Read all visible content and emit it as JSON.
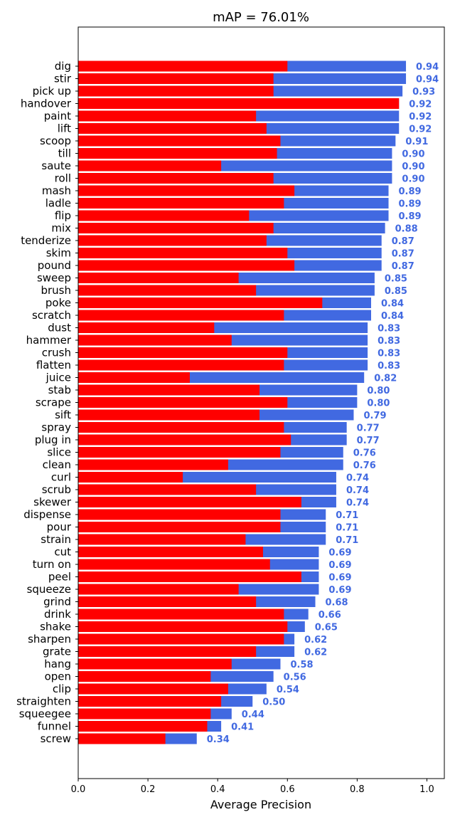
{
  "chart_data": {
    "type": "bar",
    "orientation": "horizontal",
    "title": "mAP = 76.01%",
    "xlabel": "Average Precision",
    "ylabel": "",
    "xlim": [
      0.0,
      1.05
    ],
    "xticks": [
      "0.0",
      "0.2",
      "0.4",
      "0.6",
      "0.8",
      "1.0"
    ],
    "xtick_values": [
      0.0,
      0.2,
      0.4,
      0.6,
      0.8,
      1.0
    ],
    "grid": false,
    "colors": {
      "ap_bar": "#4169e1",
      "inner_bar": "#ff0000",
      "value_label": "#4169e1"
    },
    "categories": [
      "dig",
      "stir",
      "pick up",
      "handover",
      "paint",
      "lift",
      "scoop",
      "till",
      "saute",
      "roll",
      "mash",
      "ladle",
      "flip",
      "mix",
      "tenderize",
      "skim",
      "pound",
      "sweep",
      "brush",
      "poke",
      "scratch",
      "dust",
      "hammer",
      "crush",
      "flatten",
      "juice",
      "stab",
      "scrape",
      "sift",
      "spray",
      "plug in",
      "slice",
      "clean",
      "curl",
      "scrub",
      "skewer",
      "dispense",
      "pour",
      "strain",
      "cut",
      "turn on",
      "peel",
      "squeeze",
      "grind",
      "drink",
      "shake",
      "sharpen",
      "grate",
      "hang",
      "open",
      "clip",
      "straighten",
      "squeegee",
      "funnel",
      "screw"
    ],
    "series": [
      {
        "values": [
          0.94,
          0.94,
          0.93,
          0.92,
          0.92,
          0.92,
          0.91,
          0.9,
          0.9,
          0.9,
          0.89,
          0.89,
          0.89,
          0.88,
          0.87,
          0.87,
          0.87,
          0.85,
          0.85,
          0.84,
          0.84,
          0.83,
          0.83,
          0.83,
          0.83,
          0.82,
          0.8,
          0.8,
          0.79,
          0.77,
          0.77,
          0.76,
          0.76,
          0.74,
          0.74,
          0.74,
          0.71,
          0.71,
          0.71,
          0.69,
          0.69,
          0.69,
          0.69,
          0.68,
          0.66,
          0.65,
          0.62,
          0.62,
          0.58,
          0.56,
          0.54,
          0.5,
          0.44,
          0.41,
          0.34
        ]
      },
      {
        "values": [
          0.6,
          0.56,
          0.56,
          0.92,
          0.51,
          0.54,
          0.58,
          0.57,
          0.41,
          0.56,
          0.62,
          0.59,
          0.49,
          0.56,
          0.54,
          0.6,
          0.62,
          0.46,
          0.51,
          0.7,
          0.59,
          0.39,
          0.44,
          0.6,
          0.59,
          0.32,
          0.52,
          0.6,
          0.52,
          0.59,
          0.61,
          0.58,
          0.43,
          0.3,
          0.51,
          0.64,
          0.58,
          0.58,
          0.48,
          0.53,
          0.55,
          0.64,
          0.46,
          0.51,
          0.59,
          0.6,
          0.59,
          0.51,
          0.44,
          0.38,
          0.43,
          0.41,
          0.38,
          0.37,
          0.25
        ]
      }
    ],
    "value_labels": [
      "0.94",
      "0.94",
      "0.93",
      "0.92",
      "0.92",
      "0.92",
      "0.91",
      "0.90",
      "0.90",
      "0.90",
      "0.89",
      "0.89",
      "0.89",
      "0.88",
      "0.87",
      "0.87",
      "0.87",
      "0.85",
      "0.85",
      "0.84",
      "0.84",
      "0.83",
      "0.83",
      "0.83",
      "0.83",
      "0.82",
      "0.80",
      "0.80",
      "0.79",
      "0.77",
      "0.77",
      "0.76",
      "0.76",
      "0.74",
      "0.74",
      "0.74",
      "0.71",
      "0.71",
      "0.71",
      "0.69",
      "0.69",
      "0.69",
      "0.69",
      "0.68",
      "0.66",
      "0.65",
      "0.62",
      "0.62",
      "0.58",
      "0.56",
      "0.54",
      "0.50",
      "0.44",
      "0.41",
      "0.34"
    ]
  }
}
